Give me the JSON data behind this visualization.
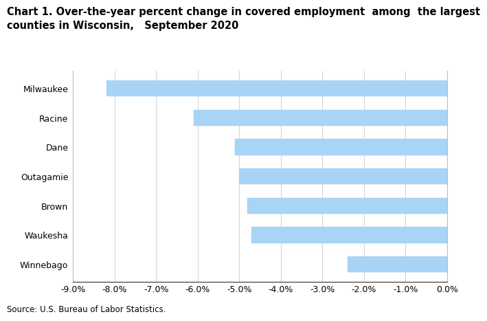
{
  "counties": [
    "Milwaukee",
    "Racine",
    "Dane",
    "Outagamie",
    "Brown",
    "Waukesha",
    "Winnebago"
  ],
  "values": [
    -8.2,
    -6.1,
    -5.1,
    -5.0,
    -4.8,
    -4.7,
    -2.4
  ],
  "bar_color": "#a8d4f5",
  "bar_edge_color": "#a8d4f5",
  "title_line1": "Chart 1. Over-the-year percent change in covered employment  among  the largest",
  "title_line2": "counties in Wisconsin,   September 2020",
  "source": "Source: U.S. Bureau of Labor Statistics.",
  "xlim": [
    -9.0,
    0.0
  ],
  "xticks": [
    -9.0,
    -8.0,
    -7.0,
    -6.0,
    -5.0,
    -4.0,
    -3.0,
    -2.0,
    -1.0,
    0.0
  ],
  "background_color": "#ffffff",
  "grid_color": "#d0d0d0",
  "title_fontsize": 10.5,
  "tick_fontsize": 9,
  "source_fontsize": 8.5,
  "bar_height": 0.55
}
